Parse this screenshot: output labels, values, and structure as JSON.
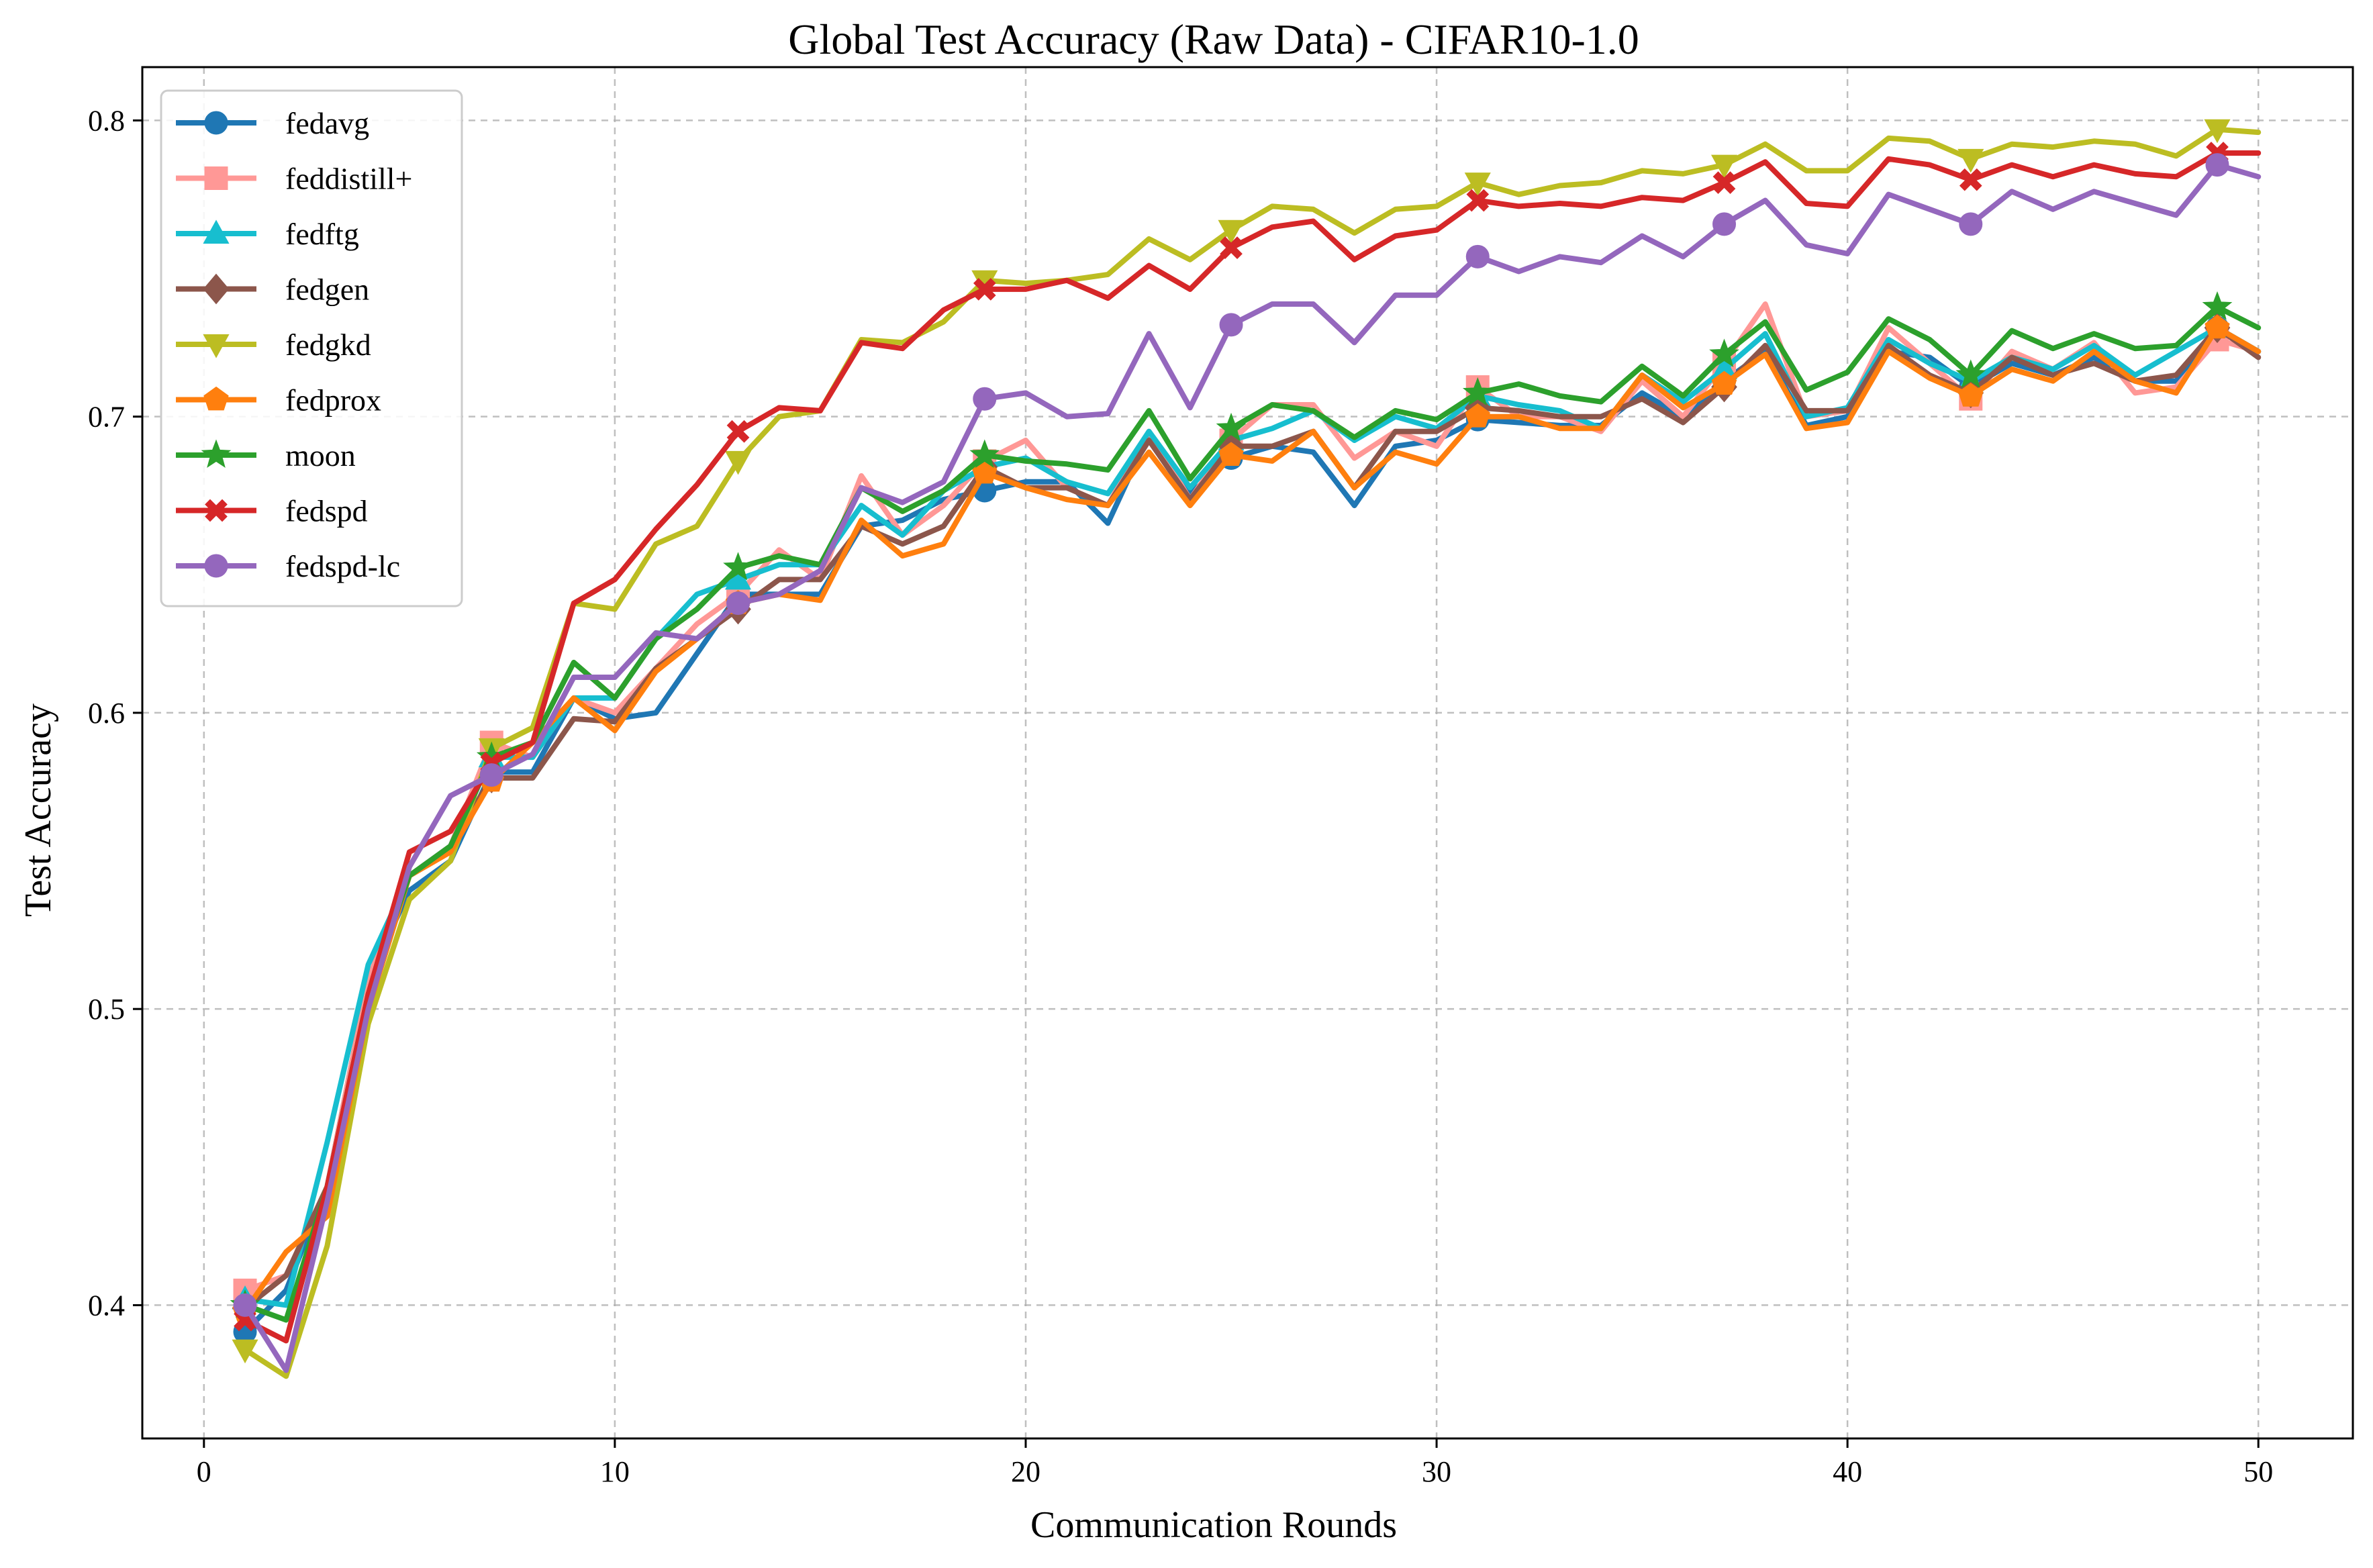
{
  "chart_data": {
    "type": "line",
    "title": "Global Test Accuracy (Raw Data) - CIFAR10-1.0",
    "xlabel": "Communication Rounds",
    "ylabel": "Test Accuracy",
    "xlim": [
      -1.5,
      52.3
    ],
    "ylim": [
      0.355,
      0.818
    ],
    "xticks": [
      0,
      10,
      20,
      30,
      40,
      50
    ],
    "yticks": [
      0.4,
      0.5,
      0.6,
      0.7,
      0.8
    ],
    "xtick_labels": [
      "0",
      "10",
      "20",
      "30",
      "40",
      "50"
    ],
    "ytick_labels": [
      "0.4",
      "0.5",
      "0.6",
      "0.7",
      "0.8"
    ],
    "grid": true,
    "legend_position": "top-left",
    "x": [
      1,
      2,
      3,
      4,
      5,
      6,
      7,
      8,
      9,
      10,
      11,
      12,
      13,
      14,
      15,
      16,
      17,
      18,
      19,
      20,
      21,
      22,
      23,
      24,
      25,
      26,
      27,
      28,
      29,
      30,
      31,
      32,
      33,
      34,
      35,
      36,
      37,
      38,
      39,
      40,
      41,
      42,
      43,
      44,
      45,
      46,
      47,
      48,
      49,
      50
    ],
    "series": [
      {
        "name": "fedavg",
        "color": "#1f77b4",
        "marker": "circle",
        "values": [
          0.391,
          0.405,
          0.44,
          0.51,
          0.54,
          0.55,
          0.58,
          0.58,
          0.605,
          0.598,
          0.6,
          0.62,
          0.64,
          0.64,
          0.64,
          0.663,
          0.665,
          0.672,
          0.675,
          0.678,
          0.678,
          0.664,
          0.694,
          0.674,
          0.686,
          0.69,
          0.688,
          0.67,
          0.69,
          0.692,
          0.699,
          0.698,
          0.697,
          0.697,
          0.708,
          0.7,
          0.712,
          0.722,
          0.697,
          0.7,
          0.722,
          0.72,
          0.71,
          0.718,
          0.714,
          0.72,
          0.712,
          0.712,
          0.73,
          0.722
        ]
      },
      {
        "name": "feddistill+",
        "color": "#ff9896",
        "marker": "square",
        "values": [
          0.405,
          0.41,
          0.44,
          0.51,
          0.545,
          0.555,
          0.59,
          0.585,
          0.605,
          0.6,
          0.615,
          0.63,
          0.64,
          0.655,
          0.645,
          0.68,
          0.66,
          0.67,
          0.685,
          0.692,
          0.676,
          0.67,
          0.695,
          0.672,
          0.692,
          0.704,
          0.704,
          0.686,
          0.695,
          0.69,
          0.71,
          0.7,
          0.7,
          0.695,
          0.712,
          0.7,
          0.718,
          0.738,
          0.7,
          0.702,
          0.73,
          0.718,
          0.706,
          0.722,
          0.716,
          0.725,
          0.708,
          0.71,
          0.726,
          0.722
        ]
      },
      {
        "name": "fedftg",
        "color": "#17becf",
        "marker": "triangle-up",
        "values": [
          0.402,
          0.4,
          0.455,
          0.515,
          0.545,
          0.555,
          0.585,
          0.585,
          0.605,
          0.605,
          0.625,
          0.64,
          0.645,
          0.65,
          0.65,
          0.67,
          0.66,
          0.675,
          0.683,
          0.686,
          0.678,
          0.674,
          0.695,
          0.676,
          0.692,
          0.696,
          0.702,
          0.692,
          0.7,
          0.696,
          0.707,
          0.704,
          0.702,
          0.696,
          0.714,
          0.705,
          0.716,
          0.728,
          0.7,
          0.703,
          0.726,
          0.718,
          0.712,
          0.72,
          0.716,
          0.724,
          0.714,
          0.722,
          0.73,
          0.722
        ]
      },
      {
        "name": "fedgen",
        "color": "#8c564b",
        "marker": "diamond",
        "values": [
          0.399,
          0.41,
          0.44,
          0.505,
          0.545,
          0.555,
          0.578,
          0.578,
          0.598,
          0.597,
          0.615,
          0.625,
          0.635,
          0.645,
          0.645,
          0.663,
          0.657,
          0.663,
          0.683,
          0.676,
          0.676,
          0.67,
          0.692,
          0.672,
          0.69,
          0.69,
          0.695,
          0.676,
          0.695,
          0.695,
          0.703,
          0.702,
          0.7,
          0.7,
          0.706,
          0.698,
          0.71,
          0.724,
          0.702,
          0.702,
          0.724,
          0.714,
          0.708,
          0.72,
          0.714,
          0.718,
          0.712,
          0.714,
          0.73,
          0.72
        ]
      },
      {
        "name": "fedgkd",
        "color": "#bcbd22",
        "marker": "triangle-down",
        "values": [
          0.385,
          0.376,
          0.42,
          0.495,
          0.537,
          0.55,
          0.588,
          0.595,
          0.637,
          0.635,
          0.657,
          0.663,
          0.685,
          0.7,
          0.702,
          0.726,
          0.725,
          0.732,
          0.746,
          0.745,
          0.746,
          0.748,
          0.76,
          0.753,
          0.763,
          0.771,
          0.77,
          0.762,
          0.77,
          0.771,
          0.779,
          0.775,
          0.778,
          0.779,
          0.783,
          0.782,
          0.785,
          0.792,
          0.783,
          0.783,
          0.794,
          0.793,
          0.787,
          0.792,
          0.791,
          0.793,
          0.792,
          0.788,
          0.797,
          0.796
        ]
      },
      {
        "name": "fedprox",
        "color": "#ff7f0e",
        "marker": "pentagon",
        "values": [
          0.398,
          0.418,
          0.43,
          0.5,
          0.545,
          0.553,
          0.577,
          0.59,
          0.605,
          0.594,
          0.614,
          0.625,
          0.637,
          0.64,
          0.638,
          0.665,
          0.653,
          0.657,
          0.681,
          0.676,
          0.672,
          0.67,
          0.688,
          0.67,
          0.687,
          0.685,
          0.695,
          0.676,
          0.688,
          0.684,
          0.7,
          0.7,
          0.696,
          0.696,
          0.714,
          0.703,
          0.711,
          0.721,
          0.696,
          0.698,
          0.722,
          0.713,
          0.707,
          0.716,
          0.712,
          0.722,
          0.712,
          0.708,
          0.73,
          0.722
        ]
      },
      {
        "name": "moon",
        "color": "#2ca02c",
        "marker": "star",
        "values": [
          0.4,
          0.395,
          0.44,
          0.505,
          0.545,
          0.555,
          0.585,
          0.59,
          0.617,
          0.605,
          0.625,
          0.635,
          0.649,
          0.653,
          0.65,
          0.676,
          0.668,
          0.675,
          0.687,
          0.685,
          0.684,
          0.682,
          0.702,
          0.679,
          0.696,
          0.704,
          0.702,
          0.693,
          0.702,
          0.699,
          0.708,
          0.711,
          0.707,
          0.705,
          0.717,
          0.707,
          0.721,
          0.732,
          0.709,
          0.715,
          0.733,
          0.726,
          0.714,
          0.729,
          0.723,
          0.728,
          0.723,
          0.724,
          0.737,
          0.73
        ]
      },
      {
        "name": "fedspd",
        "color": "#d62728",
        "marker": "x",
        "values": [
          0.395,
          0.388,
          0.44,
          0.505,
          0.553,
          0.56,
          0.583,
          0.59,
          0.637,
          0.645,
          0.662,
          0.677,
          0.695,
          0.703,
          0.702,
          0.725,
          0.723,
          0.736,
          0.743,
          0.743,
          0.746,
          0.74,
          0.751,
          0.743,
          0.757,
          0.764,
          0.766,
          0.753,
          0.761,
          0.763,
          0.773,
          0.771,
          0.772,
          0.771,
          0.774,
          0.773,
          0.779,
          0.786,
          0.772,
          0.771,
          0.787,
          0.785,
          0.78,
          0.785,
          0.781,
          0.785,
          0.782,
          0.781,
          0.789,
          0.789
        ]
      },
      {
        "name": "fedspd-lc",
        "color": "#9467bd",
        "marker": "circle",
        "values": [
          0.4,
          0.378,
          0.435,
          0.5,
          0.548,
          0.572,
          0.579,
          0.586,
          0.612,
          0.612,
          0.627,
          0.625,
          0.637,
          0.64,
          0.648,
          0.676,
          0.671,
          0.678,
          0.706,
          0.708,
          0.7,
          0.701,
          0.728,
          0.703,
          0.731,
          0.738,
          0.738,
          0.725,
          0.741,
          0.741,
          0.754,
          0.749,
          0.754,
          0.752,
          0.761,
          0.754,
          0.765,
          0.773,
          0.758,
          0.755,
          0.775,
          0.77,
          0.765,
          0.776,
          0.77,
          0.776,
          0.772,
          0.768,
          0.785,
          0.781
        ]
      }
    ]
  }
}
